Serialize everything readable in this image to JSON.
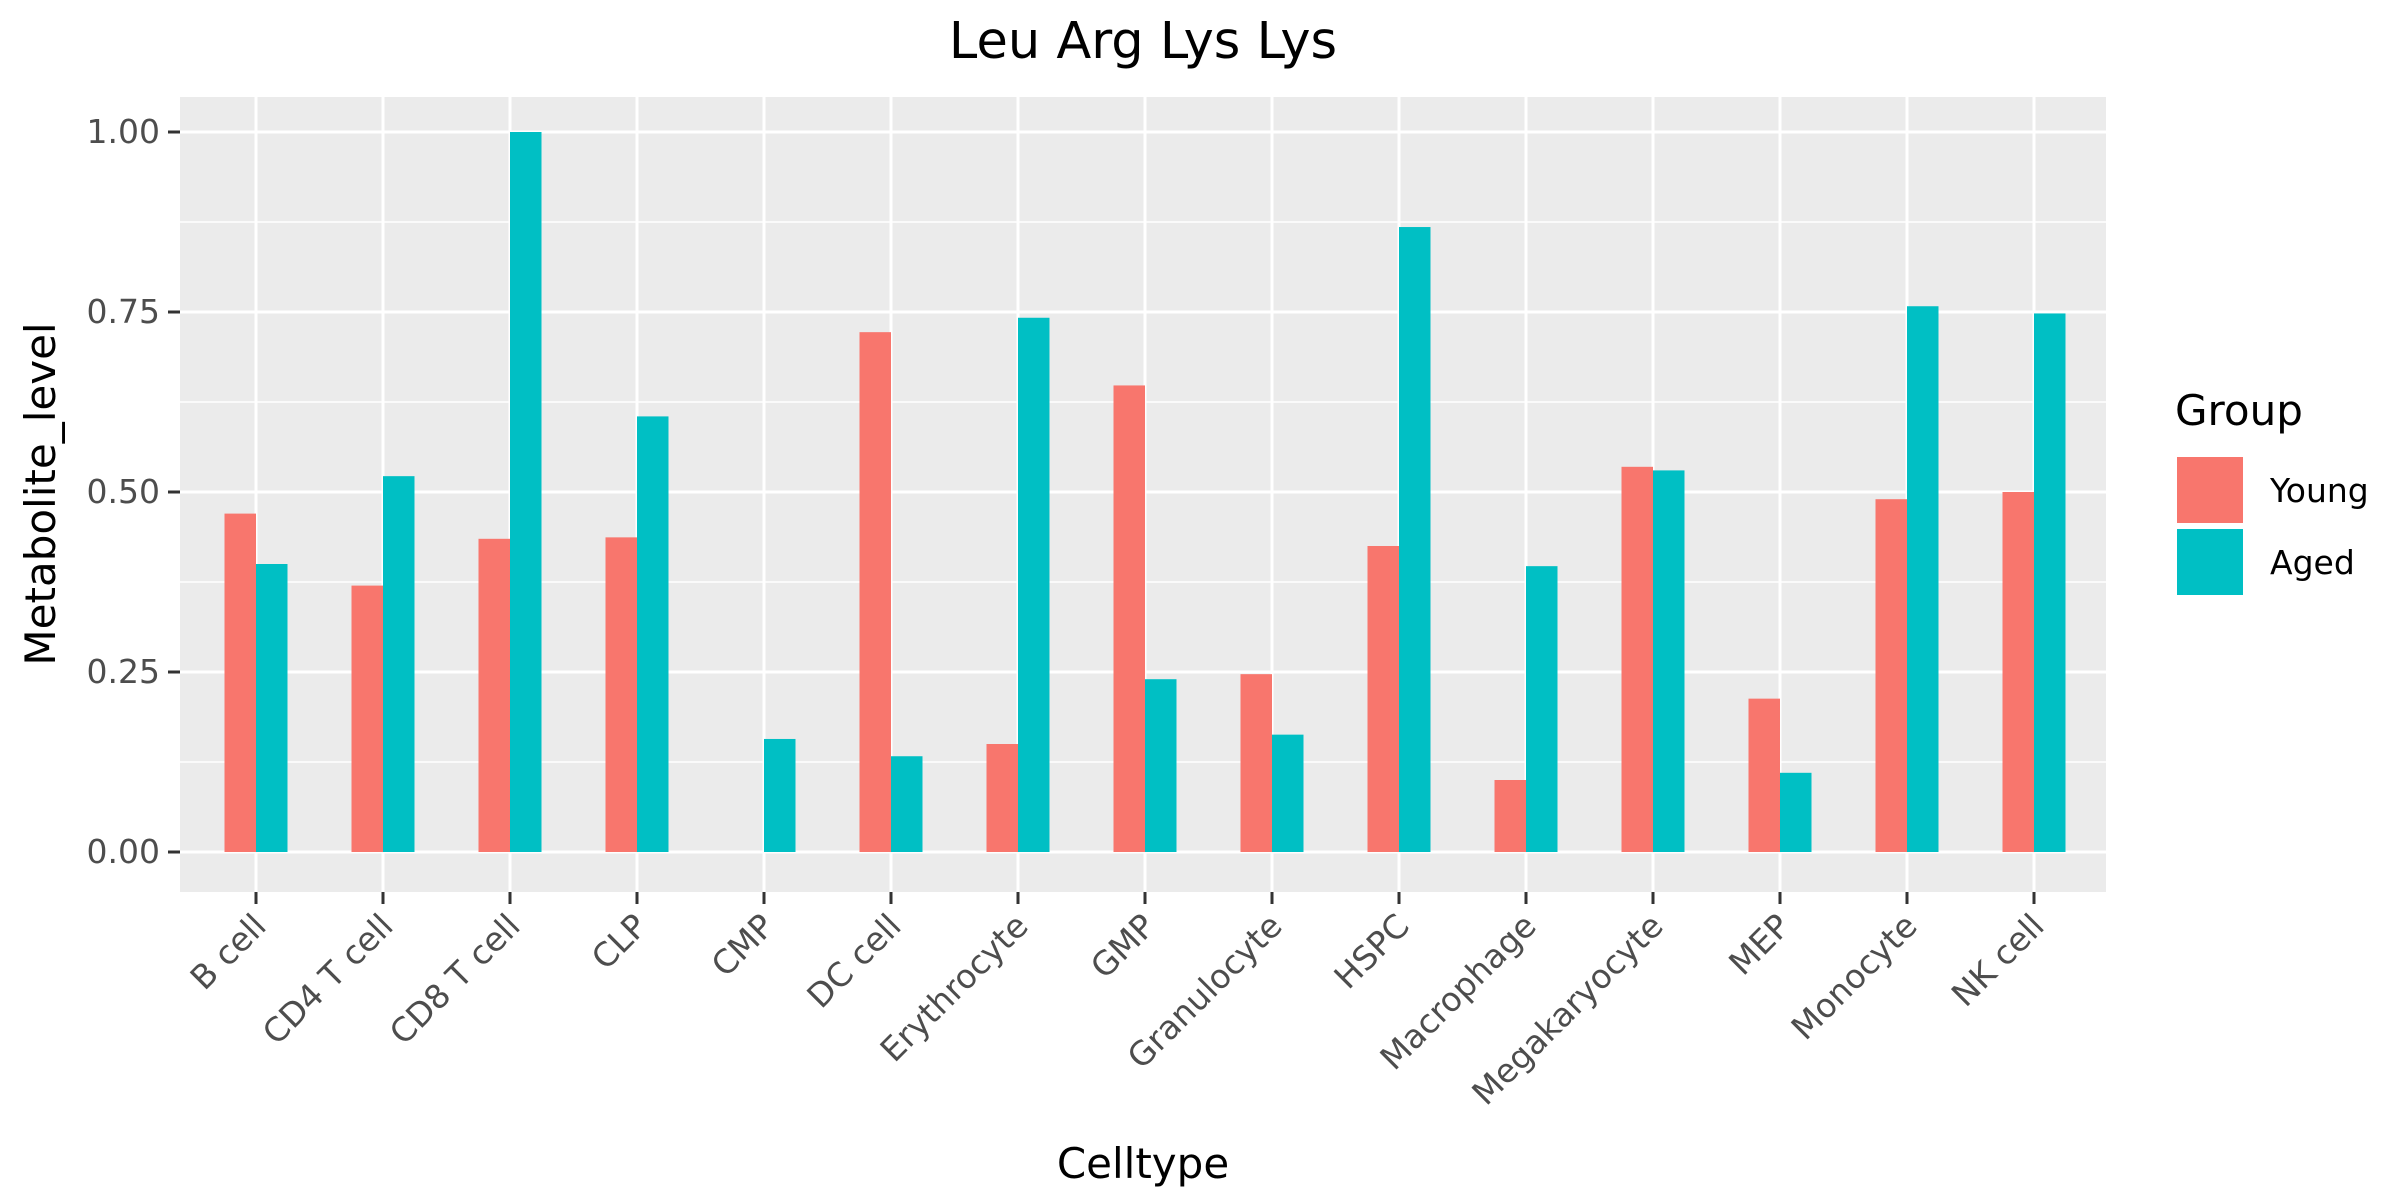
{
  "chart_data": {
    "type": "bar",
    "title": "Leu Arg Lys Lys",
    "xlabel": "Celltype",
    "ylabel": "Metabolite_level",
    "ylim": [
      -0.05,
      1.05
    ],
    "yticks": [
      0.0,
      0.25,
      0.5,
      0.75,
      1.0
    ],
    "ytick_labels": [
      "0.00",
      "0.25",
      "0.50",
      "0.75",
      "1.00"
    ],
    "grid": true,
    "legend": {
      "title": "Group",
      "position": "right"
    },
    "categories": [
      "B cell",
      "CD4 T cell",
      "CD8 T cell",
      "CLP",
      "CMP",
      "DC cell",
      "Erythrocyte",
      "GMP",
      "Granulocyte",
      "HSPC",
      "Macrophage",
      "Megakaryocyte",
      "MEP",
      "Monocyte",
      "NK cell"
    ],
    "series": [
      {
        "name": "Young",
        "color": "#F8766D",
        "values": [
          0.47,
          0.37,
          0.435,
          0.437,
          null,
          0.722,
          0.15,
          0.648,
          0.247,
          0.425,
          0.1,
          0.535,
          0.213,
          0.49,
          0.5
        ]
      },
      {
        "name": "Aged",
        "color": "#00BFC4",
        "values": [
          0.4,
          0.522,
          1.0,
          0.605,
          0.157,
          0.133,
          0.742,
          0.24,
          0.163,
          0.868,
          0.397,
          0.53,
          0.11,
          0.758,
          0.748
        ]
      }
    ]
  }
}
